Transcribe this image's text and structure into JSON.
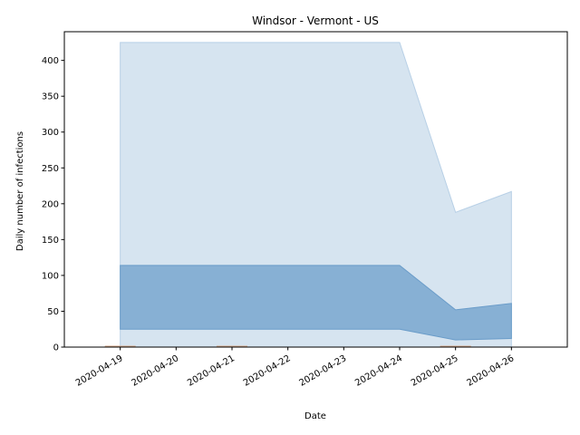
{
  "chart_data": {
    "type": "area",
    "title": "Windsor - Vermont - US",
    "xlabel": "Date",
    "ylabel": "Daily number of infections",
    "x": [
      "2020-04-19",
      "2020-04-20",
      "2020-04-21",
      "2020-04-22",
      "2020-04-23",
      "2020-04-24",
      "2020-04-25",
      "2020-04-26"
    ],
    "xlim": [
      "2020-04-18",
      "2020-04-27"
    ],
    "ylim": [
      0,
      440
    ],
    "yticks": [
      0,
      50,
      100,
      150,
      200,
      250,
      300,
      350,
      400
    ],
    "grid": false,
    "bands": [
      {
        "x": [
          "2020-04-19",
          "2020-04-24",
          "2020-04-25",
          "2020-04-26"
        ],
        "lower": [
          0,
          0,
          0,
          0
        ],
        "upper": [
          425,
          425,
          188,
          217
        ],
        "color": "#d6e4f0",
        "edge": "#b8d0e6"
      },
      {
        "x": [
          "2020-04-19",
          "2020-04-24",
          "2020-04-25",
          "2020-04-26"
        ],
        "lower": [
          25,
          25,
          10,
          12
        ],
        "upper": [
          114,
          114,
          52,
          61
        ],
        "color": "#87b0d4",
        "edge": "#6a9cc9"
      }
    ],
    "observed": {
      "x": [
        "2020-04-19",
        "2020-04-21",
        "2020-04-25"
      ],
      "y": [
        1,
        1,
        1
      ],
      "color": "#d4a78a"
    }
  }
}
